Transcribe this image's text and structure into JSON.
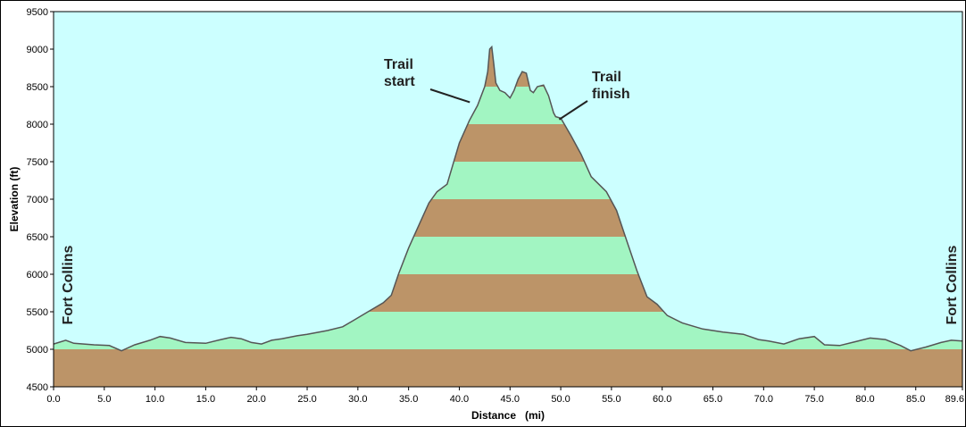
{
  "chart_data": {
    "type": "area",
    "title": "",
    "xlabel": "Distance   (mi)",
    "ylabel": "Elevation (ft)",
    "xlim": [
      0,
      89.6
    ],
    "ylim": [
      4500,
      9500
    ],
    "x_ticks": [
      "0.0",
      "5.0",
      "10.0",
      "15.0",
      "20.0",
      "25.0",
      "30.0",
      "35.0",
      "40.0",
      "45.0",
      "50.0",
      "55.0",
      "60.0",
      "65.0",
      "70.0",
      "75.0",
      "80.0",
      "85.0",
      "89.6"
    ],
    "x_tick_values": [
      0,
      5,
      10,
      15,
      20,
      25,
      30,
      35,
      40,
      45,
      50,
      55,
      60,
      65,
      70,
      75,
      80,
      85,
      89.6
    ],
    "y_ticks": [
      "4500",
      "5000",
      "5500",
      "6000",
      "6500",
      "7000",
      "7500",
      "8000",
      "8500",
      "9000",
      "9500"
    ],
    "y_tick_values": [
      4500,
      5000,
      5500,
      6000,
      6500,
      7000,
      7500,
      8000,
      8500,
      9000,
      9500
    ],
    "band_interval_ft": 500,
    "grid": false,
    "colors": {
      "sky": "#ccffff",
      "band_green": "#a2f5c2",
      "band_brown": "#bc9468",
      "outline": "#555555"
    },
    "series": [
      {
        "x": [
          0,
          1.2,
          2,
          4,
          5.5,
          6.7,
          8,
          9.5,
          10.5,
          11.5,
          13,
          15,
          16.5,
          17.5,
          18.5,
          19.5,
          20.5,
          21.5,
          22.5,
          24,
          25,
          27,
          28.5,
          29.5,
          31,
          32.5,
          33.3,
          34,
          35,
          36,
          37,
          37.8,
          38.8,
          40,
          41,
          41.8,
          42.5,
          42.8,
          43,
          43.2,
          43.4,
          43.6,
          44,
          44.5,
          45,
          45.4,
          45.8,
          46.2,
          46.6,
          47,
          47.3,
          47.7,
          48.3,
          48.8,
          49.3,
          49.5,
          50,
          51,
          52,
          53,
          54.5,
          55.5,
          56.5,
          57.5,
          58.5,
          59.5,
          60.5,
          62,
          64,
          66,
          68,
          69.5,
          70.5,
          72,
          73.5,
          75,
          76,
          77.5,
          79,
          80.5,
          82,
          83.5,
          84.5,
          86,
          87.5,
          88.5,
          89.6
        ],
        "y": [
          5070,
          5120,
          5080,
          5060,
          5050,
          4980,
          5060,
          5120,
          5170,
          5150,
          5090,
          5080,
          5130,
          5160,
          5140,
          5090,
          5070,
          5120,
          5140,
          5180,
          5200,
          5250,
          5300,
          5380,
          5500,
          5620,
          5720,
          6000,
          6350,
          6650,
          6950,
          7100,
          7200,
          7750,
          8050,
          8250,
          8500,
          8700,
          9000,
          9030,
          8800,
          8550,
          8450,
          8420,
          8350,
          8450,
          8600,
          8700,
          8680,
          8450,
          8420,
          8500,
          8520,
          8380,
          8150,
          8100,
          8080,
          7850,
          7600,
          7300,
          7100,
          6850,
          6450,
          6050,
          5700,
          5600,
          5450,
          5350,
          5270,
          5230,
          5200,
          5130,
          5110,
          5070,
          5140,
          5170,
          5060,
          5050,
          5100,
          5150,
          5130,
          5050,
          4980,
          5030,
          5090,
          5120,
          5110
        ]
      }
    ],
    "annotations": [
      {
        "text": [
          "Trail",
          "start"
        ],
        "x": 41.3,
        "y": 8280
      },
      {
        "text": [
          "Trail",
          "finish"
        ],
        "x": 49.5,
        "y": 8110
      },
      {
        "text": "Fort Collins",
        "position": "left-end"
      },
      {
        "text": "Fort Collins",
        "position": "right-end"
      }
    ]
  }
}
